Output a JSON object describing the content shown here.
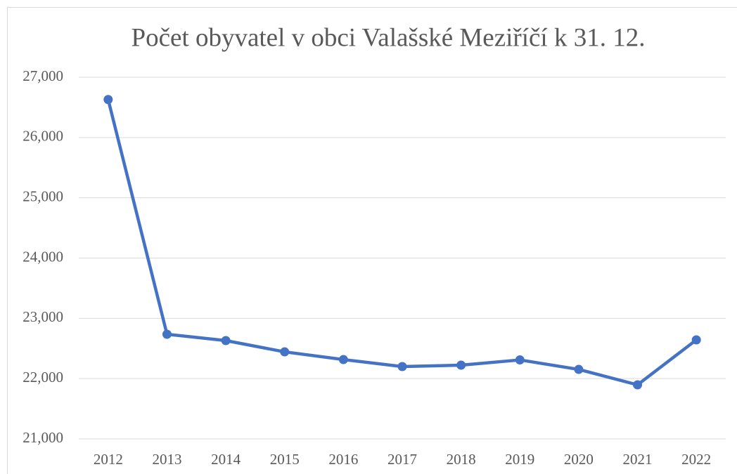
{
  "chart_data": {
    "type": "line",
    "title": "Počet obyvatel v obci Valašské Meziříčí k 31. 12.",
    "categories": [
      "2012",
      "2013",
      "2014",
      "2015",
      "2016",
      "2017",
      "2018",
      "2019",
      "2020",
      "2021",
      "2022"
    ],
    "values": [
      26630,
      22736,
      22631,
      22444,
      22316,
      22200,
      22223,
      22310,
      22153,
      21897,
      22643
    ],
    "color": "#4472c4",
    "ylim": [
      21000,
      27000
    ],
    "yticks": [
      {
        "value": 21000,
        "label": "21,000"
      },
      {
        "value": 22000,
        "label": "22,000"
      },
      {
        "value": 23000,
        "label": "23,000"
      },
      {
        "value": 24000,
        "label": "24,000"
      },
      {
        "value": 25000,
        "label": "25,000"
      },
      {
        "value": 26000,
        "label": "26,000"
      },
      {
        "value": 27000,
        "label": "27,000"
      }
    ],
    "grid": true
  }
}
